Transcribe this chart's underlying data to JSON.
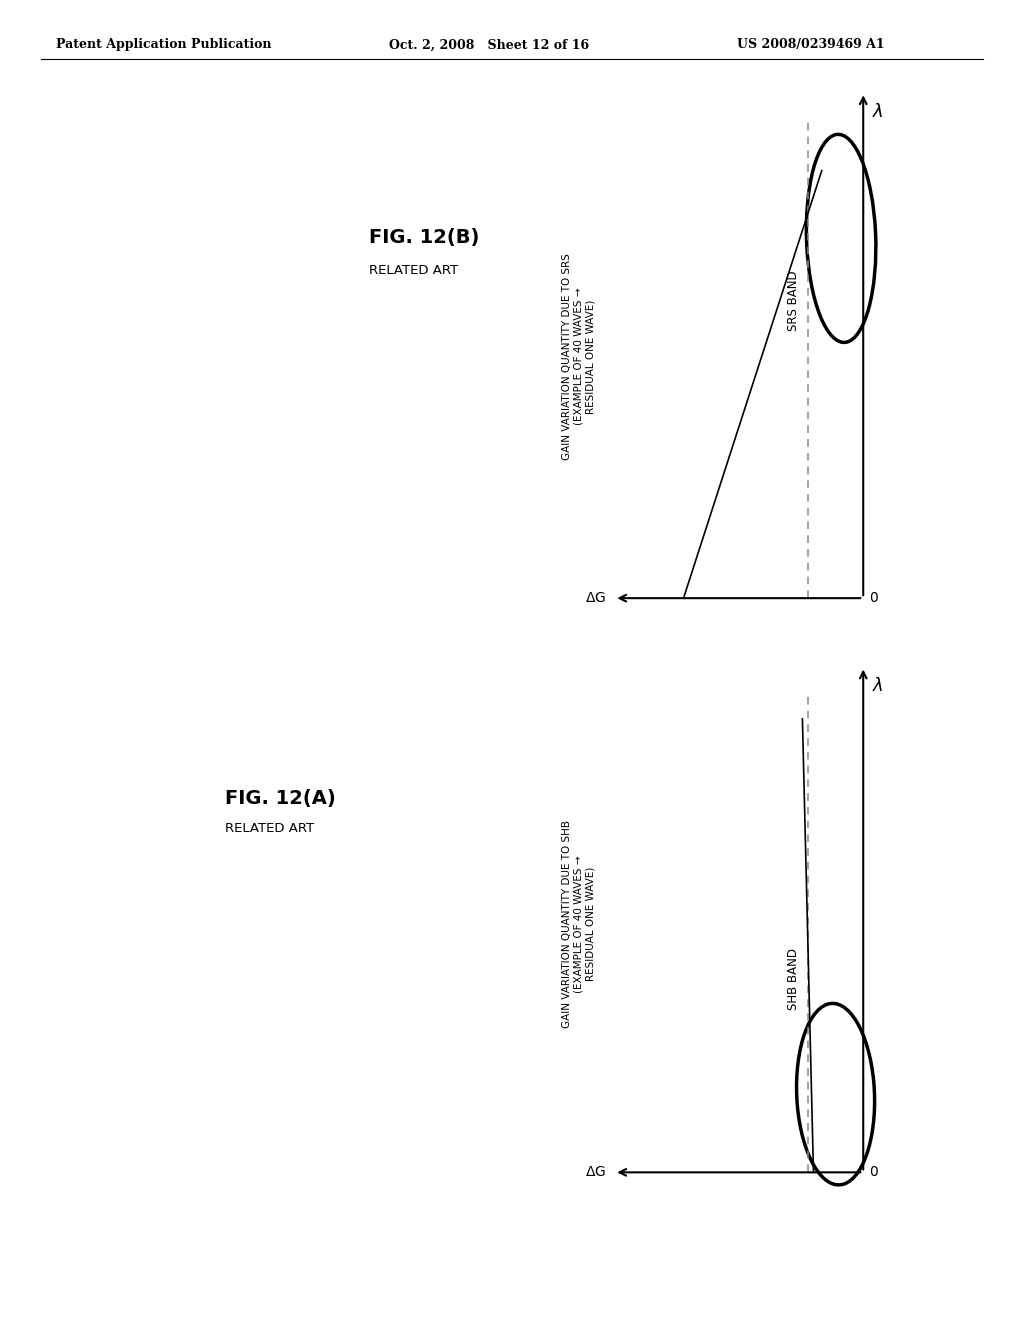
{
  "header_left": "Patent Application Publication",
  "header_mid": "Oct. 2, 2008   Sheet 12 of 16",
  "header_right": "US 2008/0239469 A1",
  "fig_a_title": "FIG. 12(A)",
  "fig_a_subtitle": "RELATED ART",
  "fig_b_title": "FIG. 12(B)",
  "fig_b_subtitle": "RELATED ART",
  "fig_a_ylabel": "GAIN VARIATION QUANTITY DUE TO SHB\n(EXAMPLE OF 40 WAVES →\nRESIDUAL ONE WAVE)",
  "fig_b_ylabel": "GAIN VARIATION QUANTITY DUE TO SRS\n(EXAMPLE OF 40 WAVES →\nRESIDUAL ONE WAVE)",
  "fig_a_band_label": "SHB BAND",
  "fig_b_band_label": "SRS BAND",
  "background_color": "#ffffff"
}
